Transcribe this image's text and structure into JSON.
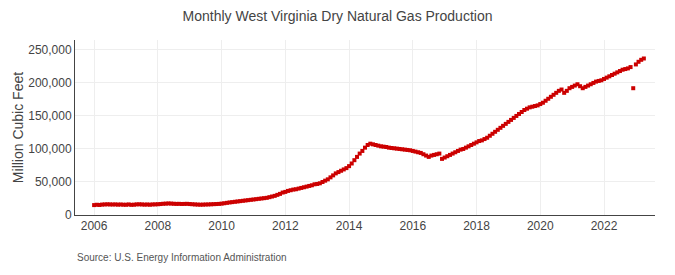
{
  "chart_data": {
    "type": "scatter",
    "title": "Monthly West Virginia Dry Natural Gas Production",
    "ylabel": "Million Cubic Feet",
    "annotations": [
      "Source: U.S. Energy Information Administration"
    ],
    "color": "#cc0000",
    "marker": "square",
    "grid": true,
    "xlim": [
      2005.4,
      2023.6
    ],
    "xticks": [
      2006,
      2008,
      2010,
      2012,
      2014,
      2016,
      2018,
      2020,
      2022
    ],
    "ylim": [
      0,
      265000
    ],
    "yticks": [
      0,
      {
        "value": 50000,
        "label": "50,000"
      },
      {
        "value": 100000,
        "label": "100,000"
      },
      {
        "value": 150000,
        "label": "150,000"
      },
      {
        "value": 200000,
        "label": "200,000"
      },
      {
        "value": 250000,
        "label": "250,000"
      }
    ],
    "x": [
      2006,
      2006.083,
      2006.167,
      2006.25,
      2006.333,
      2006.417,
      2006.5,
      2006.583,
      2006.667,
      2006.75,
      2006.833,
      2006.917,
      2007,
      2007.083,
      2007.167,
      2007.25,
      2007.333,
      2007.417,
      2007.5,
      2007.583,
      2007.667,
      2007.75,
      2007.833,
      2007.917,
      2008,
      2008.083,
      2008.167,
      2008.25,
      2008.333,
      2008.417,
      2008.5,
      2008.583,
      2008.667,
      2008.75,
      2008.833,
      2008.917,
      2009,
      2009.083,
      2009.167,
      2009.25,
      2009.333,
      2009.417,
      2009.5,
      2009.583,
      2009.667,
      2009.75,
      2009.833,
      2009.917,
      2010,
      2010.083,
      2010.167,
      2010.25,
      2010.333,
      2010.417,
      2010.5,
      2010.583,
      2010.667,
      2010.75,
      2010.833,
      2010.917,
      2011,
      2011.083,
      2011.167,
      2011.25,
      2011.333,
      2011.417,
      2011.5,
      2011.583,
      2011.667,
      2011.75,
      2011.833,
      2011.917,
      2012,
      2012.083,
      2012.167,
      2012.25,
      2012.333,
      2012.417,
      2012.5,
      2012.583,
      2012.667,
      2012.75,
      2012.833,
      2012.917,
      2013,
      2013.083,
      2013.167,
      2013.25,
      2013.333,
      2013.417,
      2013.5,
      2013.583,
      2013.667,
      2013.75,
      2013.833,
      2013.917,
      2014,
      2014.083,
      2014.167,
      2014.25,
      2014.333,
      2014.417,
      2014.5,
      2014.583,
      2014.667,
      2014.75,
      2014.833,
      2014.917,
      2015,
      2015.083,
      2015.167,
      2015.25,
      2015.333,
      2015.417,
      2015.5,
      2015.583,
      2015.667,
      2015.75,
      2015.833,
      2015.917,
      2016,
      2016.083,
      2016.167,
      2016.25,
      2016.333,
      2016.417,
      2016.5,
      2016.583,
      2016.667,
      2016.75,
      2016.833,
      2016.917,
      2017,
      2017.083,
      2017.167,
      2017.25,
      2017.333,
      2017.417,
      2017.5,
      2017.583,
      2017.667,
      2017.75,
      2017.833,
      2017.917,
      2018,
      2018.083,
      2018.167,
      2018.25,
      2018.333,
      2018.417,
      2018.5,
      2018.583,
      2018.667,
      2018.75,
      2018.833,
      2018.917,
      2019,
      2019.083,
      2019.167,
      2019.25,
      2019.333,
      2019.417,
      2019.5,
      2019.583,
      2019.667,
      2019.75,
      2019.833,
      2019.917,
      2020,
      2020.083,
      2020.167,
      2020.25,
      2020.333,
      2020.417,
      2020.5,
      2020.583,
      2020.667,
      2020.75,
      2020.833,
      2020.917,
      2021,
      2021.083,
      2021.167,
      2021.25,
      2021.333,
      2021.417,
      2021.5,
      2021.583,
      2021.667,
      2021.75,
      2021.833,
      2021.917,
      2022,
      2022.083,
      2022.167,
      2022.25,
      2022.333,
      2022.417,
      2022.5,
      2022.583,
      2022.667,
      2022.75,
      2022.833,
      2022.917,
      2023,
      2023.083,
      2023.167,
      2023.25
    ],
    "values": [
      15000,
      15500,
      15200,
      15800,
      16000,
      16200,
      16000,
      15900,
      16000,
      15700,
      15900,
      15600,
      15500,
      16000,
      15400,
      15600,
      16100,
      16200,
      16000,
      15700,
      15900,
      15600,
      16000,
      16100,
      16300,
      16600,
      17000,
      17200,
      17500,
      17300,
      17000,
      16800,
      16900,
      16700,
      16800,
      16900,
      16600,
      16300,
      16000,
      15800,
      15600,
      15700,
      15900,
      16000,
      16200,
      16400,
      16600,
      16800,
      17200,
      17800,
      18400,
      19000,
      19500,
      20000,
      20500,
      21000,
      21500,
      22000,
      22500,
      23000,
      23500,
      24000,
      24500,
      25000,
      25500,
      26000,
      27000,
      28000,
      29000,
      30500,
      32000,
      34000,
      35000,
      36500,
      37500,
      38500,
      39000,
      40000,
      41000,
      42000,
      43000,
      44000,
      45000,
      46500,
      47000,
      48000,
      50000,
      52000,
      54000,
      57000,
      60000,
      63000,
      65000,
      67000,
      69000,
      71000,
      74000,
      78000,
      83000,
      88000,
      93000,
      97000,
      102000,
      106000,
      108000,
      107000,
      106000,
      105000,
      104000,
      103500,
      103000,
      102000,
      101500,
      101000,
      100500,
      100000,
      99500,
      99000,
      98500,
      98000,
      97000,
      96000,
      95000,
      94000,
      92000,
      90000,
      88000,
      90000,
      91000,
      92000,
      93000,
      85000,
      87000,
      89000,
      91000,
      93000,
      95000,
      97000,
      99000,
      100000,
      102000,
      104000,
      106000,
      108000,
      110000,
      112000,
      113000,
      115000,
      117000,
      120000,
      123000,
      126000,
      129000,
      132000,
      135000,
      138000,
      141000,
      144000,
      147000,
      150000,
      153000,
      156000,
      159000,
      161000,
      163000,
      164000,
      165000,
      166000,
      168000,
      170000,
      173000,
      176000,
      179000,
      182000,
      185000,
      188000,
      190000,
      185000,
      188000,
      192000,
      194000,
      196000,
      198000,
      195000,
      192000,
      194000,
      196000,
      198000,
      200000,
      202000,
      203000,
      204000,
      206000,
      208000,
      210000,
      212000,
      214000,
      216000,
      218000,
      220000,
      221000,
      222000,
      224000,
      192000,
      228000,
      232000,
      235000,
      237000
    ]
  }
}
